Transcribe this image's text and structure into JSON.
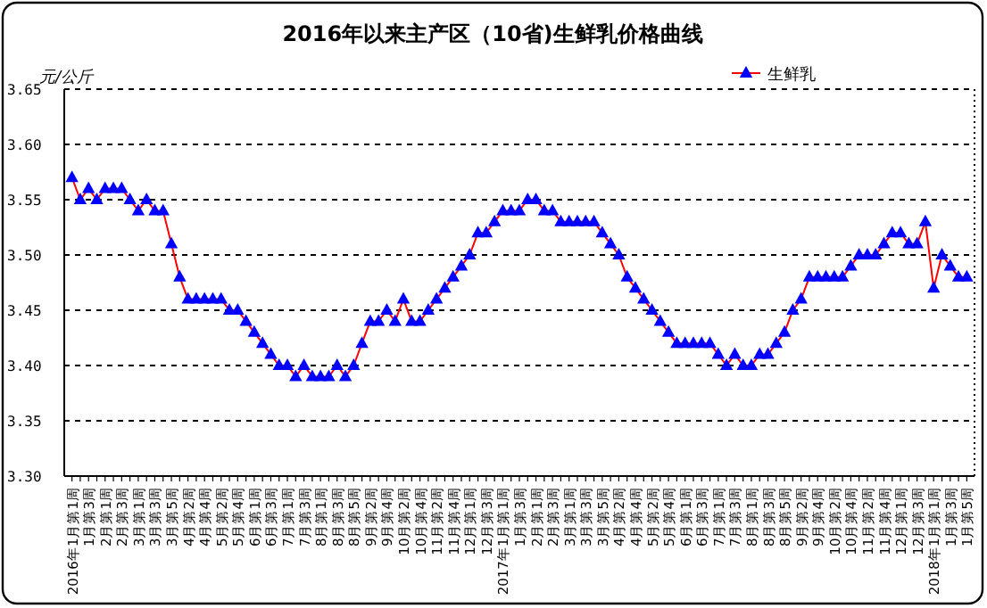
{
  "chart_data": {
    "type": "line",
    "title": "2016年以来主产区（10省)生鲜乳价格曲线",
    "ylabel": "元/公斤",
    "categories": [
      "2016年1月第1周",
      null,
      "1月第3周",
      null,
      "2月第1周",
      null,
      "2月第3周",
      null,
      "3月第1周",
      null,
      "3月第3周",
      null,
      "3月第5周",
      null,
      "4月第2周",
      null,
      "4月第4周",
      null,
      "5月第2周",
      null,
      "5月第4周",
      null,
      "6月第1周",
      null,
      "6月第3周",
      null,
      "7月第1周",
      null,
      "7月第3周",
      null,
      "8月第1周",
      null,
      "8月第3周",
      null,
      "8月第5周",
      null,
      "9月第2周",
      null,
      "9月第4周",
      null,
      "10月第2周",
      null,
      "10月第4周",
      null,
      "11月第2周",
      null,
      "11月第4周",
      null,
      "12月第1周",
      null,
      "12月第3周",
      null,
      "2017年1月第1周",
      null,
      "1月第3周",
      null,
      "2月第1周",
      null,
      "2月第3周",
      null,
      "3月第1周",
      null,
      "3月第3周",
      null,
      "3月第5周",
      null,
      "4月第2周",
      null,
      "4月第4周",
      null,
      "5月第2周",
      null,
      "5月第4周",
      null,
      "6月第1周",
      null,
      "6月第3周",
      null,
      "7月第1周",
      null,
      "7月第3周",
      null,
      "8月第1周",
      null,
      "8月第3周",
      null,
      "8月第5周",
      null,
      "9月第2周",
      null,
      "9月第4周",
      null,
      "10月第2周",
      null,
      "10月第4周",
      null,
      "11月第2周",
      null,
      "11月第4周",
      null,
      "12月第1周",
      null,
      "12月第3周",
      null,
      "2018年1月第1周",
      null,
      "1月第3周",
      null,
      "1月第5周"
    ],
    "series": [
      {
        "name": "生鲜乳",
        "color": "#0000ff",
        "values": [
          3.57,
          3.55,
          3.56,
          3.55,
          3.56,
          3.56,
          3.56,
          3.55,
          3.54,
          3.55,
          3.54,
          3.54,
          3.51,
          3.48,
          3.46,
          3.46,
          3.46,
          3.46,
          3.46,
          3.45,
          3.45,
          3.44,
          3.43,
          3.42,
          3.41,
          3.4,
          3.4,
          3.39,
          3.4,
          3.39,
          3.39,
          3.39,
          3.4,
          3.39,
          3.4,
          3.42,
          3.44,
          3.44,
          3.45,
          3.44,
          3.46,
          3.44,
          3.44,
          3.45,
          3.46,
          3.47,
          3.48,
          3.49,
          3.5,
          3.52,
          3.52,
          3.53,
          3.54,
          3.54,
          3.54,
          3.55,
          3.55,
          3.54,
          3.54,
          3.53,
          3.53,
          3.53,
          3.53,
          3.53,
          3.52,
          3.51,
          3.5,
          3.48,
          3.47,
          3.46,
          3.45,
          3.44,
          3.43,
          3.42,
          3.42,
          3.42,
          3.42,
          3.42,
          3.41,
          3.4,
          3.41,
          3.4,
          3.4,
          3.41,
          3.41,
          3.42,
          3.43,
          3.45,
          3.46,
          3.48,
          3.48,
          3.48,
          3.48,
          3.48,
          3.49,
          3.5,
          3.5,
          3.5,
          3.51,
          3.52,
          3.52,
          3.51,
          3.51,
          3.53,
          3.47,
          3.5,
          3.49,
          3.48,
          3.48
        ]
      }
    ],
    "ylim": [
      3.3,
      3.65
    ],
    "yticks": [
      {
        "value": 3.3,
        "label": "3.30"
      },
      {
        "value": 3.35,
        "label": "3.35"
      },
      {
        "value": 3.4,
        "label": "3.40"
      },
      {
        "value": 3.45,
        "label": "3.45"
      },
      {
        "value": 3.5,
        "label": "3.50"
      },
      {
        "value": 3.55,
        "label": "3.55"
      },
      {
        "value": 3.6,
        "label": "3.60"
      },
      {
        "value": 3.65,
        "label": "3.65"
      }
    ],
    "grid": "y",
    "legend": "top right",
    "marker": "triangle",
    "line_style": "solid"
  }
}
